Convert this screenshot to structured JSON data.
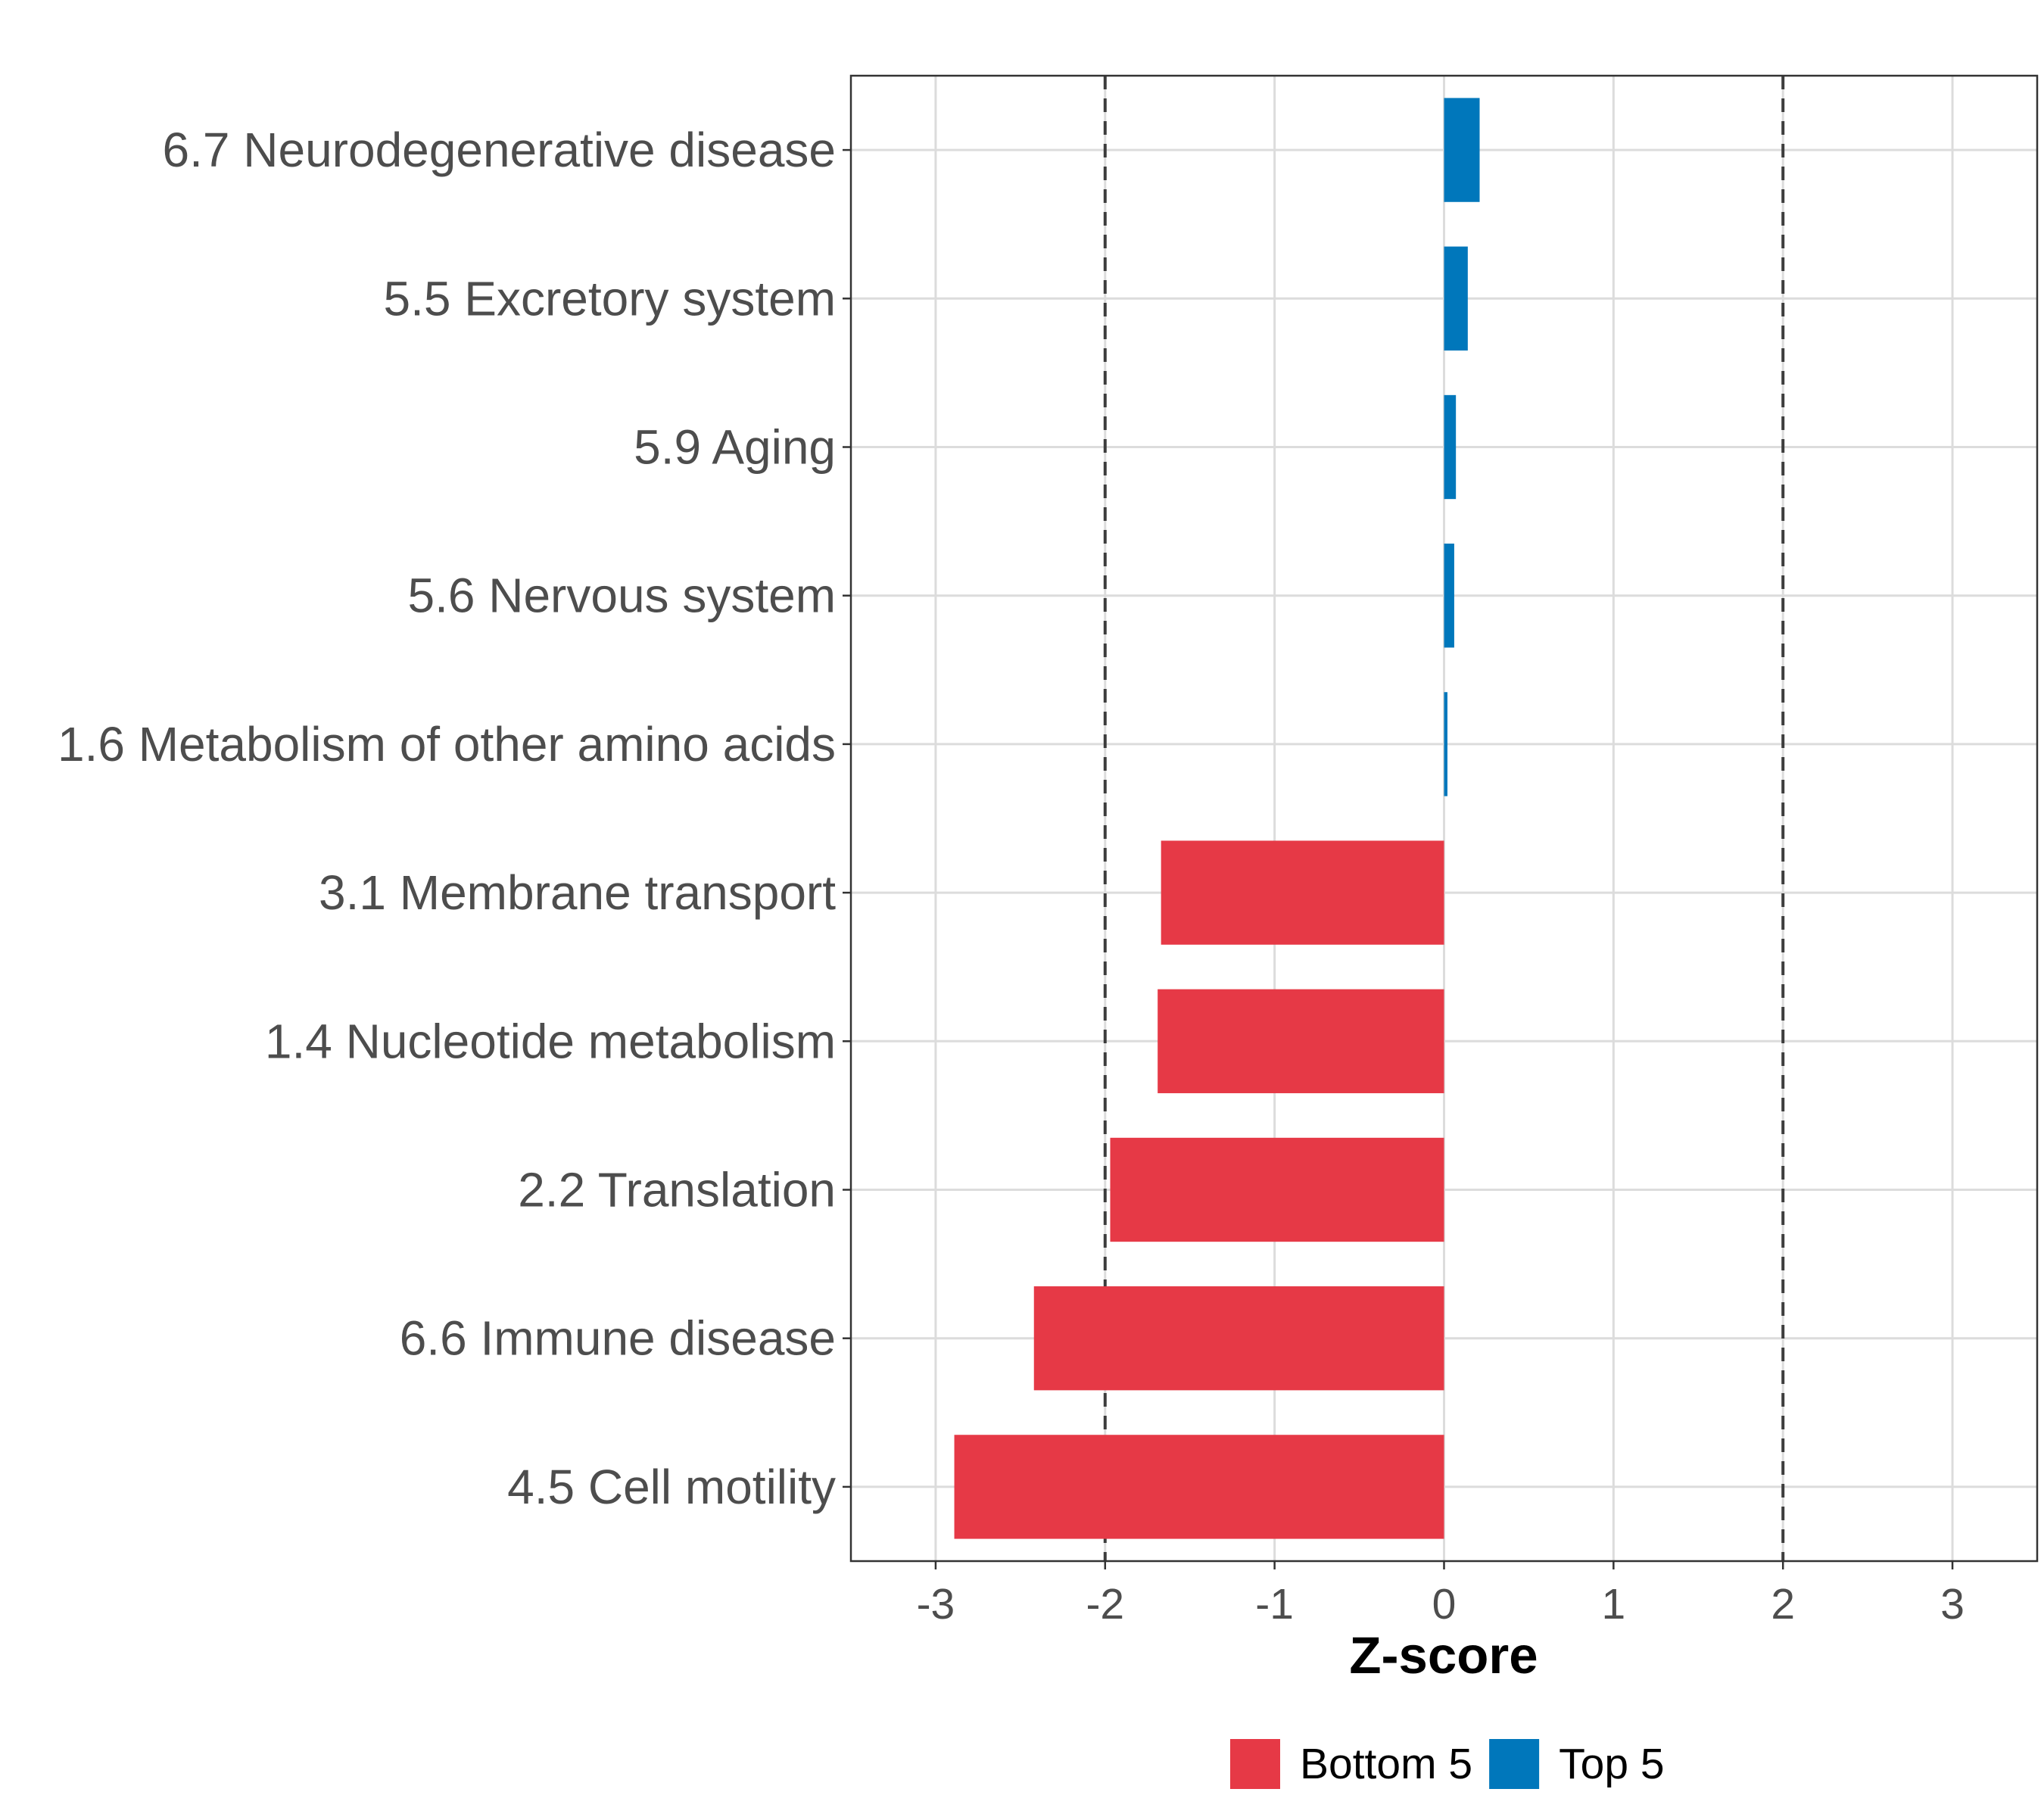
{
  "chart_data": {
    "type": "bar",
    "orientation": "horizontal",
    "title": "",
    "xlabel": "Z-score",
    "ylabel": "",
    "xlim": [
      -3.5,
      3.5
    ],
    "xticks": [
      -3,
      -2,
      -1,
      0,
      1,
      2,
      3
    ],
    "xtick_labels": [
      "-3",
      "-2",
      "-1",
      "0",
      "1",
      "2",
      "3"
    ],
    "reference_lines": [
      -2,
      2
    ],
    "grid": true,
    "legend_position": "bottom",
    "categories": [
      "6.7 Neurodegenerative disease",
      "5.5 Excretory system",
      "5.9 Aging",
      "5.6 Nervous system",
      "1.6 Metabolism of other amino acids",
      "3.1 Membrane transport",
      "1.4 Nucleotide metabolism",
      "2.2 Translation",
      "6.6 Immune disease",
      "4.5 Cell motility"
    ],
    "values": [
      0.21,
      0.14,
      0.07,
      0.06,
      0.02,
      -1.67,
      -1.69,
      -1.97,
      -2.42,
      -2.89
    ],
    "groups": [
      "Top 5",
      "Top 5",
      "Top 5",
      "Top 5",
      "Top 5",
      "Bottom 5",
      "Bottom 5",
      "Bottom 5",
      "Bottom 5",
      "Bottom 5"
    ],
    "series": [
      {
        "name": "Bottom 5",
        "color": "#e63946"
      },
      {
        "name": "Top 5",
        "color": "#0077bb"
      }
    ]
  }
}
